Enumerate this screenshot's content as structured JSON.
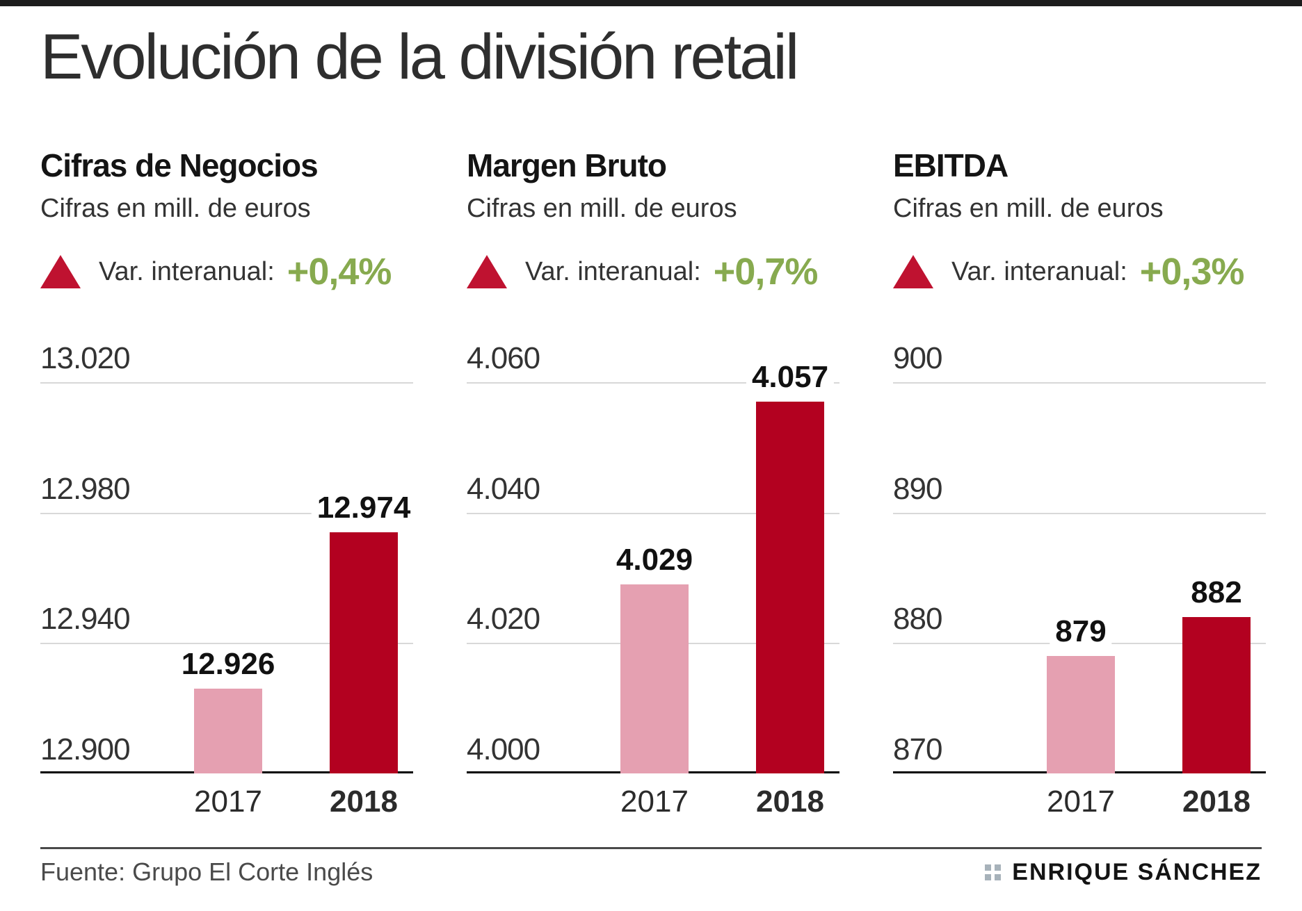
{
  "page": {
    "title": "Evolución de la división retail"
  },
  "footer": {
    "source": "Fuente: Grupo El Corte Inglés",
    "author": "ENRIQUE SÁNCHEZ"
  },
  "colors": {
    "bar_2017": "#e5a0b1",
    "bar_2018": "#b30120",
    "triangle": "#bf1230",
    "variation_green": "#87aa4f",
    "gridline": "#d8d8d8",
    "axis": "#000000",
    "top_bar": "#1c1c1c"
  },
  "chart_data": [
    {
      "type": "bar",
      "title": "Cifras de Negocios",
      "subtitle": "Cifras en mill. de euros",
      "variation_label": "Var. interanual:",
      "variation_value": "+0,4%",
      "categories": [
        "2017",
        "2018"
      ],
      "values": [
        12926,
        12974
      ],
      "value_labels": [
        "12.926",
        "12.974"
      ],
      "ticks": [
        {
          "label": "13.020",
          "value": 13020
        },
        {
          "label": "12.980",
          "value": 12980
        },
        {
          "label": "12.940",
          "value": 12940
        },
        {
          "label": "12.900",
          "value": 12900
        }
      ],
      "ylim": [
        12900,
        13020
      ],
      "legend_position": "none",
      "grid": true
    },
    {
      "type": "bar",
      "title": "Margen Bruto",
      "subtitle": "Cifras en mill. de euros",
      "variation_label": "Var. interanual:",
      "variation_value": "+0,7%",
      "categories": [
        "2017",
        "2018"
      ],
      "values": [
        4029,
        4057
      ],
      "value_labels": [
        "4.029",
        "4.057"
      ],
      "ticks": [
        {
          "label": "4.060",
          "value": 4060
        },
        {
          "label": "4.040",
          "value": 4040
        },
        {
          "label": "4.020",
          "value": 4020
        },
        {
          "label": "4.000",
          "value": 4000
        }
      ],
      "ylim": [
        4000,
        4060
      ],
      "legend_position": "none",
      "grid": true
    },
    {
      "type": "bar",
      "title": "EBITDA",
      "subtitle": "Cifras en mill. de euros",
      "variation_label": "Var. interanual:",
      "variation_value": "+0,3%",
      "categories": [
        "2017",
        "2018"
      ],
      "values": [
        879,
        882
      ],
      "value_labels": [
        "879",
        "882"
      ],
      "ticks": [
        {
          "label": "900",
          "value": 900
        },
        {
          "label": "890",
          "value": 890
        },
        {
          "label": "880",
          "value": 880
        },
        {
          "label": "870",
          "value": 870
        }
      ],
      "ylim": [
        870,
        900
      ],
      "legend_position": "none",
      "grid": true
    }
  ]
}
